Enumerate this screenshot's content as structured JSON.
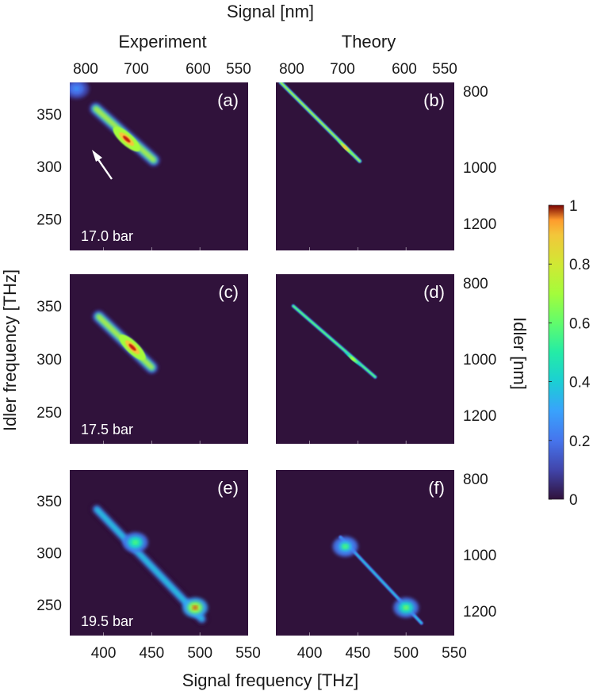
{
  "chart_data": {
    "type": "heatmap",
    "top_title": "Signal [nm]",
    "column_titles": [
      "Experiment",
      "Theory"
    ],
    "xlabel": "Signal frequency [THz]",
    "ylabel": "Idler frequency [THz]",
    "right_ylabel": "Idler [nm]",
    "xlim": [
      365,
      550
    ],
    "ylim": [
      220,
      380
    ],
    "x_ticks": [
      "400",
      "450",
      "500",
      "550"
    ],
    "y_ticks": [
      "350",
      "300",
      "250"
    ],
    "signal_nm_ticks": [
      "800",
      "700",
      "600",
      "550"
    ],
    "idler_nm_ticks": [
      "800",
      "1000",
      "1200"
    ],
    "colorbar": {
      "min": 0,
      "max": 1,
      "ticks": [
        "1",
        "0.8",
        "0.6",
        "0.4",
        "0.2",
        "0"
      ]
    },
    "colors": {
      "background": "#30123b",
      "hot": "#c61a08"
    },
    "panels": [
      {
        "label": "(a)",
        "pressure": "17.0 bar",
        "kind": "experiment",
        "features": [
          {
            "type": "ridge",
            "from": [
              392,
              355
            ],
            "to": [
              452,
              306
            ],
            "peak": [
              424,
              326
            ],
            "max": 1.0
          },
          {
            "type": "line",
            "from": [
              368,
              375
            ],
            "to": [
              368,
              245
            ],
            "max": 0.22
          },
          {
            "type": "spot",
            "at": [
              372,
              374
            ],
            "max": 0.35
          }
        ]
      },
      {
        "label": "(b)",
        "kind": "theory",
        "features": [
          {
            "type": "ridge",
            "from": [
              370,
              380
            ],
            "to": [
              452,
              305
            ],
            "peak": [
              437,
              318
            ],
            "max": 0.9
          }
        ]
      },
      {
        "label": "(c)",
        "pressure": "17.5 bar",
        "kind": "experiment",
        "features": [
          {
            "type": "ridge",
            "from": [
              395,
              340
            ],
            "to": [
              450,
              292
            ],
            "peak": [
              430,
              311
            ],
            "max": 1.0
          }
        ]
      },
      {
        "label": "(d)",
        "kind": "theory",
        "features": [
          {
            "type": "ridge",
            "from": [
              383,
              350
            ],
            "to": [
              468,
              283
            ],
            "peak": [
              445,
              300
            ],
            "max": 0.7
          }
        ]
      },
      {
        "label": "(e)",
        "pressure": "19.5 bar",
        "kind": "experiment",
        "features": [
          {
            "type": "ridge",
            "from": [
              393,
              342
            ],
            "to": [
              502,
              236
            ],
            "max": 0.55
          },
          {
            "type": "spot",
            "at": [
              433,
              310
            ],
            "max": 0.65
          },
          {
            "type": "spot",
            "at": [
              495,
              247
            ],
            "max": 1.0
          }
        ]
      },
      {
        "label": "(f)",
        "kind": "theory",
        "features": [
          {
            "type": "ridge",
            "from": [
              432,
              315
            ],
            "to": [
              516,
              232
            ],
            "max": 0.45
          },
          {
            "type": "spot",
            "at": [
              437,
              306
            ],
            "max": 0.6
          },
          {
            "type": "spot",
            "at": [
              500,
              247
            ],
            "max": 0.7
          }
        ]
      }
    ]
  }
}
